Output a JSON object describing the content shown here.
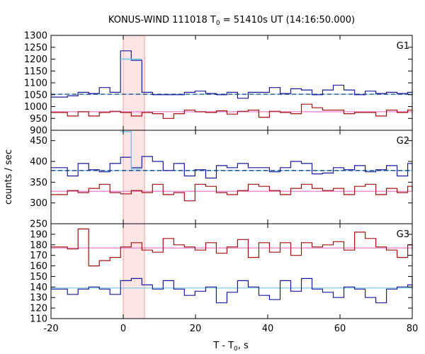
{
  "title": "KONUS-WIND 111018 T",
  "title_sub": "0",
  "title_rest": " = 51410s UT (14:16:50.000)",
  "xlabel": "T - T",
  "xlabel_sub": "0",
  "xlabel_rest": ", s",
  "ylabel": "counts / sec",
  "colors": {
    "series_red": "#a01010",
    "series_blue": "#1a1a99",
    "burst_cyan": "#6ec6e6",
    "bg_pink": "#e87fd0",
    "bg_dashed": "#0a2a6a",
    "shade": "#fde5e5",
    "shade_edge": "#f0a0a0"
  },
  "chart_data": {
    "type": "line",
    "step": true,
    "bin_width": 2.944,
    "x_start": -18.4,
    "shaded_interval": [
      0,
      5.9
    ],
    "xlim": [
      -20,
      80
    ],
    "xticks": [
      -20,
      0,
      20,
      40,
      60,
      80
    ],
    "panels": [
      {
        "name": "G1",
        "ylim": [
          900,
          1300
        ],
        "yticks": [
          900,
          950,
          1000,
          1050,
          1100,
          1150,
          1200,
          1250,
          1300
        ],
        "lower_series": [
          975,
          960,
          978,
          960,
          975,
          980,
          975,
          960,
          975,
          970,
          950,
          970,
          985,
          978,
          975,
          982,
          968,
          980,
          985,
          955,
          980,
          975,
          970,
          1010,
          995,
          985,
          985,
          970,
          975,
          975,
          960,
          985,
          975,
          985,
          995,
          975,
          965
        ],
        "upper_series": [
          1040,
          1045,
          1060,
          1055,
          1080,
          1060,
          1235,
          1195,
          1060,
          1050,
          1050,
          1050,
          1060,
          1065,
          1055,
          1050,
          1060,
          1035,
          1060,
          1060,
          1080,
          1055,
          1075,
          1070,
          1050,
          1070,
          1090,
          1070,
          1050,
          1065,
          1055,
          1060,
          1055,
          1060,
          1060,
          1070,
          1050
        ],
        "burst_series": [
          null,
          null,
          null,
          null,
          null,
          null,
          1200,
          1200,
          null
        ],
        "lower_background": 978,
        "upper_background": 1052
      },
      {
        "name": "G2",
        "ylim": [
          250,
          475
        ],
        "yticks": [
          250,
          300,
          350,
          400,
          450
        ],
        "lower_series": [
          320,
          330,
          325,
          335,
          345,
          325,
          322,
          330,
          325,
          345,
          320,
          325,
          305,
          345,
          340,
          325,
          320,
          330,
          345,
          340,
          330,
          320,
          335,
          345,
          335,
          330,
          335,
          320,
          340,
          345,
          320,
          335,
          325,
          340,
          330,
          340,
          328
        ],
        "upper_series": [
          385,
          365,
          395,
          380,
          375,
          395,
          410,
          385,
          412,
          400,
          378,
          395,
          365,
          380,
          360,
          390,
          385,
          395,
          385,
          385,
          375,
          385,
          400,
          395,
          370,
          372,
          385,
          380,
          390,
          375,
          380,
          390,
          365,
          395,
          380,
          390,
          380
        ],
        "burst_series": [
          null,
          null,
          null,
          null,
          null,
          null,
          472,
          382,
          null
        ],
        "lower_background": 328,
        "upper_background": 378
      },
      {
        "name": "G3",
        "ylim": [
          110,
          200
        ],
        "yticks": [
          110,
          120,
          130,
          140,
          150,
          160,
          170,
          180,
          190
        ],
        "upper_series": [
          178,
          176,
          195,
          160,
          165,
          168,
          178,
          182,
          175,
          173,
          186,
          180,
          178,
          175,
          182,
          172,
          178,
          185,
          168,
          182,
          173,
          182,
          170,
          182,
          178,
          180,
          183,
          175,
          192,
          186,
          178,
          175,
          168,
          180,
          175,
          186,
          180
        ],
        "lower_series": [
          138,
          133,
          138,
          140,
          138,
          133,
          146,
          148,
          142,
          138,
          146,
          138,
          132,
          136,
          140,
          125,
          135,
          146,
          140,
          132,
          128,
          146,
          136,
          148,
          138,
          135,
          130,
          140,
          138,
          130,
          125,
          138,
          140,
          142,
          138,
          150,
          138
        ],
        "lower_background": 139,
        "upper_background": 177
      }
    ]
  }
}
